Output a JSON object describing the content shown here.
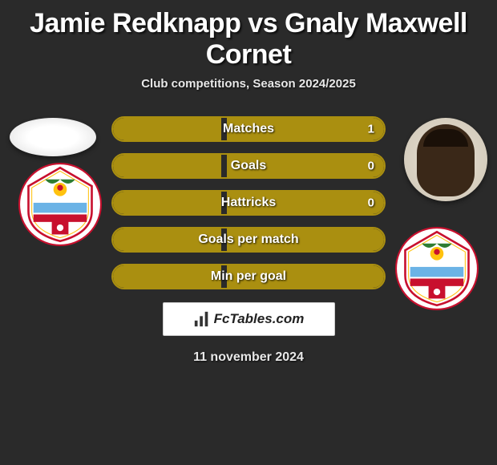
{
  "title": "Jamie Redknapp vs Gnaly Maxwell Cornet",
  "subtitle": "Club competitions, Season 2024/2025",
  "stats": [
    {
      "label": "Matches",
      "value_right": "1",
      "fill_left_pct": 40,
      "fill_right_pct": 58
    },
    {
      "label": "Goals",
      "value_right": "0",
      "fill_left_pct": 40,
      "fill_right_pct": 58
    },
    {
      "label": "Hattricks",
      "value_right": "0",
      "fill_left_pct": 40,
      "fill_right_pct": 58
    },
    {
      "label": "Goals per match",
      "value_right": "",
      "fill_left_pct": 40,
      "fill_right_pct": 58
    },
    {
      "label": "Min per goal",
      "value_right": "",
      "fill_left_pct": 40,
      "fill_right_pct": 58
    }
  ],
  "footer_site": "FcTables.com",
  "footer_date": "11 november 2024",
  "colors": {
    "page_bg": "#2a2a2a",
    "bar_border": "#aa8f10",
    "bar_fill": "#aa8f10",
    "title_color": "#ffffff",
    "subtitle_color": "#e8e8e8"
  }
}
